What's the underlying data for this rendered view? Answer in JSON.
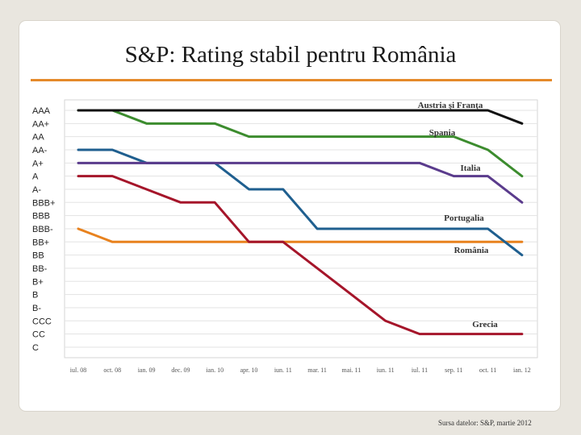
{
  "title": "S&P: Rating stabil pentru România",
  "source": "Sursa datelor: S&P, martie 2012",
  "chart_data": {
    "type": "line",
    "ratings": [
      "AAA",
      "AA+",
      "AA",
      "AA-",
      "A+",
      "A",
      "A-",
      "BBB+",
      "BBB",
      "BBB-",
      "BB+",
      "BB",
      "BB-",
      "B+",
      "B",
      "B-",
      "CCC",
      "CC",
      "C"
    ],
    "x": [
      "iul. 08",
      "oct. 08",
      "ian. 09",
      "dec. 09",
      "ian. 10",
      "apr. 10",
      "iun. 11",
      "mar. 11",
      "mai. 11",
      "iun. 11",
      "iul. 11",
      "sep. 11",
      "oct. 11",
      "ian. 12"
    ],
    "grid": true,
    "series": [
      {
        "name": "Austria şi Franţa",
        "color": "#111111",
        "values": [
          "AAA",
          "AAA",
          "AAA",
          "AAA",
          "AAA",
          "AAA",
          "AAA",
          "AAA",
          "AAA",
          "AAA",
          "AAA",
          "AAA",
          "AAA",
          "AA+"
        ]
      },
      {
        "name": "Spania",
        "color": "#3c8c2e",
        "values": [
          "AAA",
          "AAA",
          "AA+",
          "AA+",
          "AA+",
          "AA",
          "AA",
          "AA",
          "AA",
          "AA",
          "AA",
          "AA",
          "AA-",
          "A"
        ]
      },
      {
        "name": "Italia",
        "color": "#5a3b8c",
        "values": [
          "A+",
          "A+",
          "A+",
          "A+",
          "A+",
          "A+",
          "A+",
          "A+",
          "A+",
          "A+",
          "A+",
          "A",
          "A",
          "BBB+"
        ]
      },
      {
        "name": "Portugalia",
        "color": "#1f5f8f",
        "values": [
          "AA-",
          "AA-",
          "A+",
          "A+",
          "A+",
          "A-",
          "A-",
          "BBB-",
          "BBB-",
          "BBB-",
          "BBB-",
          "BBB-",
          "BBB-",
          "BB"
        ]
      },
      {
        "name": "România",
        "color": "#e8821e",
        "values": [
          "BBB-",
          "BB+",
          "BB+",
          "BB+",
          "BB+",
          "BB+",
          "BB+",
          "BB+",
          "BB+",
          "BB+",
          "BB+",
          "BB+",
          "BB+",
          "BB+"
        ]
      },
      {
        "name": "Grecia",
        "color": "#a5152a",
        "values": [
          "A",
          "A",
          "A-",
          "BBB+",
          "BBB+",
          "BB+",
          "BB+",
          "BB-",
          "B",
          "CCC",
          "CC",
          "CC",
          "CC",
          "CC"
        ]
      }
    ]
  }
}
